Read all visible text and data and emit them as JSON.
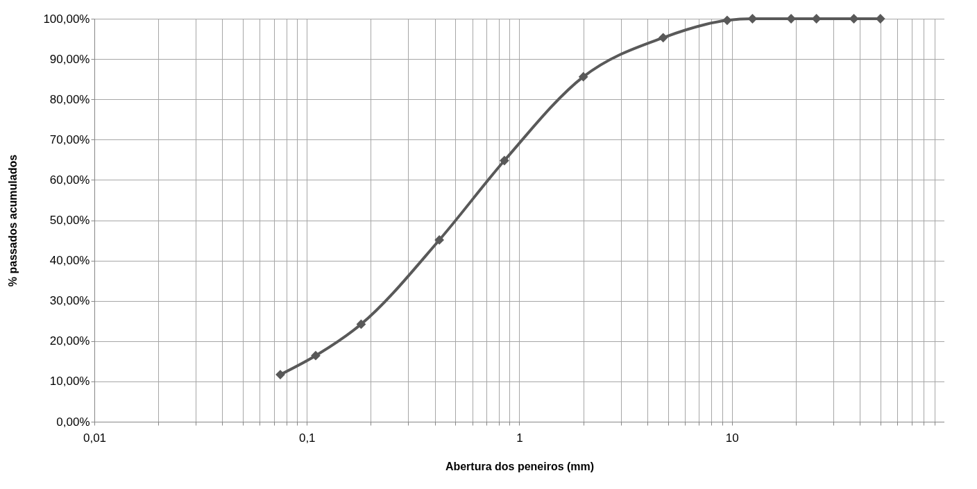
{
  "chart_data": {
    "type": "line",
    "xlabel": "Abertura dos peneiros (mm)",
    "ylabel": "% passados acumulados",
    "log": "x",
    "x": [
      0.075,
      0.11,
      0.18,
      0.42,
      0.85,
      2.0,
      4.75,
      9.5,
      12.5,
      19,
      25,
      37.5,
      50
    ],
    "series": [
      {
        "color": "#595959",
        "values": [
          11.7,
          16.4,
          24.2,
          45.1,
          64.8,
          85.6,
          95.3,
          99.6,
          100,
          100,
          100,
          100,
          100
        ]
      }
    ],
    "xlim": [
      0.01,
      100
    ],
    "xticks": [
      {
        "value": 0.01,
        "label": "0,01"
      },
      {
        "value": 0.02,
        "label": null
      },
      {
        "value": 0.03,
        "label": null
      },
      {
        "value": 0.04,
        "label": null
      },
      {
        "value": 0.05,
        "label": null
      },
      {
        "value": 0.06,
        "label": null
      },
      {
        "value": 0.07,
        "label": null
      },
      {
        "value": 0.08,
        "label": null
      },
      {
        "value": 0.09,
        "label": null
      },
      {
        "value": 0.1,
        "label": "0,1"
      },
      {
        "value": 0.2,
        "label": null
      },
      {
        "value": 0.3,
        "label": null
      },
      {
        "value": 0.4,
        "label": null
      },
      {
        "value": 0.5,
        "label": null
      },
      {
        "value": 0.6,
        "label": null
      },
      {
        "value": 0.7,
        "label": null
      },
      {
        "value": 0.8,
        "label": null
      },
      {
        "value": 0.9,
        "label": null
      },
      {
        "value": 1,
        "label": "1"
      },
      {
        "value": 2,
        "label": null
      },
      {
        "value": 3,
        "label": null
      },
      {
        "value": 4,
        "label": null
      },
      {
        "value": 5,
        "label": null
      },
      {
        "value": 6,
        "label": null
      },
      {
        "value": 7,
        "label": null
      },
      {
        "value": 8,
        "label": null
      },
      {
        "value": 9,
        "label": null
      },
      {
        "value": 10,
        "label": "10"
      },
      {
        "value": 20,
        "label": null
      },
      {
        "value": 30,
        "label": null
      },
      {
        "value": 40,
        "label": null
      },
      {
        "value": 50,
        "label": null
      },
      {
        "value": 60,
        "label": null
      },
      {
        "value": 70,
        "label": null
      },
      {
        "value": 80,
        "label": null
      },
      {
        "value": 90,
        "label": null
      }
    ],
    "ylim": [
      0,
      100
    ],
    "yticks": [
      {
        "value": 0,
        "label": "0,00%"
      },
      {
        "value": 10,
        "label": "10,00%"
      },
      {
        "value": 20,
        "label": "20,00%"
      },
      {
        "value": 30,
        "label": "30,00%"
      },
      {
        "value": 40,
        "label": "40,00%"
      },
      {
        "value": 50,
        "label": "50,00%"
      },
      {
        "value": 60,
        "label": "60,00%"
      },
      {
        "value": 70,
        "label": "70,00%"
      },
      {
        "value": 80,
        "label": "80,00%"
      },
      {
        "value": 90,
        "label": "90,00%"
      },
      {
        "value": 100,
        "label": "100,00%"
      }
    ],
    "grid": true,
    "marker": "diamond",
    "line_style": "solid"
  }
}
